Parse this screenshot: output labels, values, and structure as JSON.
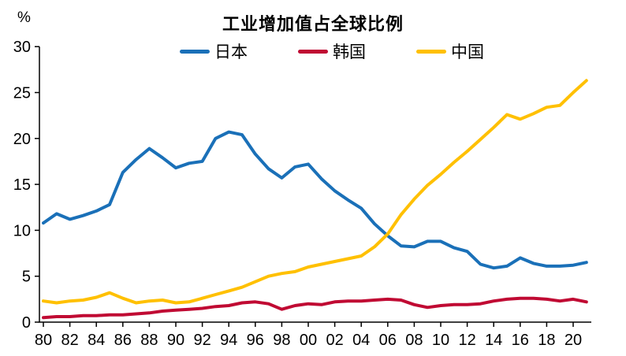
{
  "chart": {
    "title": "工业增加值占全球比例",
    "unit_label": "%",
    "legend": [
      {
        "label": "日本",
        "color": "#1A70B8"
      },
      {
        "label": "韩国",
        "color": "#C00A33"
      },
      {
        "label": "中国",
        "color": "#FFC000"
      }
    ]
  },
  "chart_data": {
    "type": "line",
    "title": "工业增加值占全球比例",
    "ylabel": "%",
    "ylim": [
      0,
      30
    ],
    "y_ticks": [
      0,
      5,
      10,
      15,
      20,
      25,
      30
    ],
    "grid": false,
    "legend_position": "top",
    "x_start_year": 1980,
    "x_end_year": 2021,
    "x": [
      1980,
      1981,
      1982,
      1983,
      1984,
      1985,
      1986,
      1987,
      1988,
      1989,
      1990,
      1991,
      1992,
      1993,
      1994,
      1995,
      1996,
      1997,
      1998,
      1999,
      2000,
      2001,
      2002,
      2003,
      2004,
      2005,
      2006,
      2007,
      2008,
      2009,
      2010,
      2011,
      2012,
      2013,
      2014,
      2015,
      2016,
      2017,
      2018,
      2019,
      2020,
      2021
    ],
    "x_tick_labels": [
      "80",
      "82",
      "84",
      "86",
      "88",
      "90",
      "92",
      "94",
      "96",
      "98",
      "00",
      "02",
      "04",
      "06",
      "08",
      "10",
      "12",
      "14",
      "16",
      "18",
      "20"
    ],
    "series": [
      {
        "name": "日本",
        "color": "#1A70B8",
        "values": [
          10.8,
          11.8,
          11.2,
          11.6,
          12.1,
          12.8,
          16.3,
          17.7,
          18.9,
          17.9,
          16.8,
          17.3,
          17.5,
          20.0,
          20.7,
          20.4,
          18.3,
          16.7,
          15.7,
          16.9,
          17.2,
          15.6,
          14.3,
          13.3,
          12.4,
          10.7,
          9.4,
          8.3,
          8.2,
          8.8,
          8.8,
          8.1,
          7.7,
          6.3,
          5.9,
          6.1,
          7.0,
          6.4,
          6.1,
          6.1,
          6.2,
          6.5
        ]
      },
      {
        "name": "韩国",
        "color": "#C00A33",
        "values": [
          0.5,
          0.6,
          0.6,
          0.7,
          0.7,
          0.8,
          0.8,
          0.9,
          1.0,
          1.2,
          1.3,
          1.4,
          1.5,
          1.7,
          1.8,
          2.1,
          2.2,
          2.0,
          1.4,
          1.8,
          2.0,
          1.9,
          2.2,
          2.3,
          2.3,
          2.4,
          2.5,
          2.4,
          1.9,
          1.6,
          1.8,
          1.9,
          1.9,
          2.0,
          2.3,
          2.5,
          2.6,
          2.6,
          2.5,
          2.3,
          2.5,
          2.2
        ]
      },
      {
        "name": "中国",
        "color": "#FFC000",
        "values": [
          2.3,
          2.1,
          2.3,
          2.4,
          2.7,
          3.2,
          2.6,
          2.1,
          2.3,
          2.4,
          2.1,
          2.2,
          2.6,
          3.0,
          3.4,
          3.8,
          4.4,
          5.0,
          5.3,
          5.5,
          6.0,
          6.3,
          6.6,
          6.9,
          7.2,
          8.2,
          9.6,
          11.7,
          13.4,
          14.9,
          16.1,
          17.4,
          18.6,
          19.9,
          21.2,
          22.6,
          22.1,
          22.7,
          23.4,
          23.6,
          25.0,
          26.3
        ]
      }
    ]
  }
}
